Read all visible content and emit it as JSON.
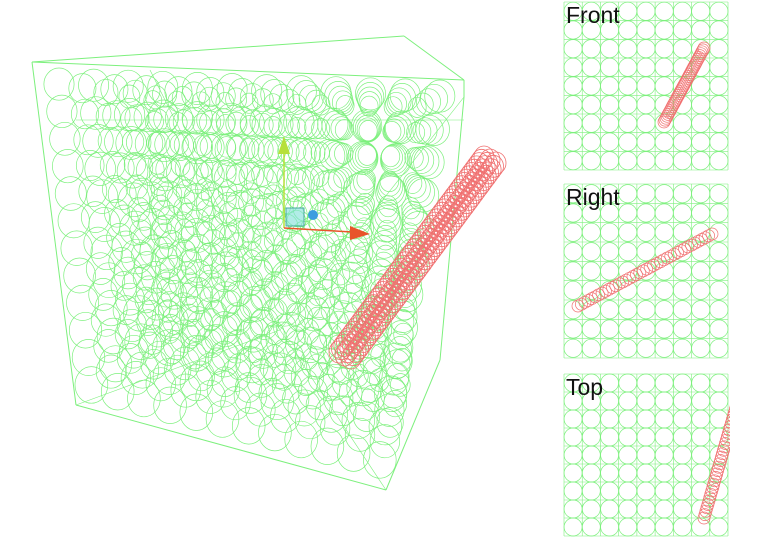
{
  "views": {
    "front": {
      "label": "Front"
    },
    "right": {
      "label": "Right"
    },
    "top": {
      "label": "Top"
    }
  },
  "colors": {
    "grid_circles": "#7df07d",
    "selected_particles": "#f07070",
    "gizmo_x": "#e8542a",
    "gizmo_y": "#b6e03a",
    "gizmo_z": "#3c9de0",
    "gizmo_center": "#7fe0d8"
  },
  "icons": {
    "move_gizmo": "translate-gizmo-icon"
  }
}
